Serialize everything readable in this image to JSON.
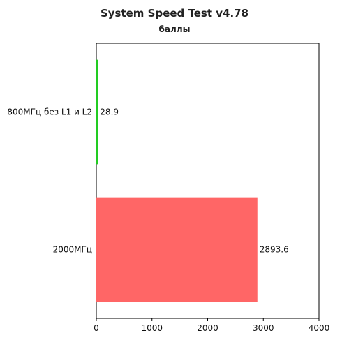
{
  "chart_data": {
    "type": "bar",
    "orientation": "horizontal",
    "title": "System Speed Test v4.78",
    "subtitle": "баллы",
    "xlabel": "",
    "ylabel": "",
    "categories": [
      "800МГц без L1 и L2",
      "2000МГц"
    ],
    "values": [
      28.9,
      2893.6
    ],
    "value_labels": [
      "28.9",
      "2893.6"
    ],
    "colors": [
      "#22cc22",
      "#ff6666"
    ],
    "xlim": [
      0,
      4000
    ],
    "xticks": [
      0,
      1000,
      2000,
      3000,
      4000
    ],
    "xtick_labels": [
      "0",
      "1000",
      "2000",
      "3000",
      "4000"
    ],
    "grid": false,
    "legend": "none"
  }
}
